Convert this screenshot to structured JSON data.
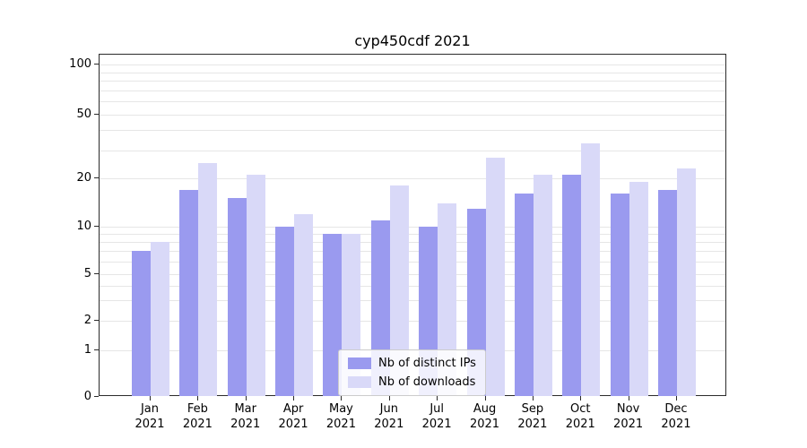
{
  "title": "cyp450cdf 2021",
  "chart_data": {
    "type": "bar",
    "title": "cyp450cdf 2021",
    "xlabel": "",
    "ylabel": "",
    "categories": [
      "Jan 2021",
      "Feb 2021",
      "Mar 2021",
      "Apr 2021",
      "May 2021",
      "Jun 2021",
      "Jul 2021",
      "Aug 2021",
      "Sep 2021",
      "Oct 2021",
      "Nov 2021",
      "Dec 2021"
    ],
    "series": [
      {
        "name": "Nb of distinct IPs",
        "color": "#9a9aef",
        "values": [
          7,
          17,
          15,
          10,
          9,
          11,
          10,
          13,
          16,
          21,
          16,
          17
        ]
      },
      {
        "name": "Nb of downloads",
        "color": "#d9d9f8",
        "values": [
          8,
          25,
          21,
          12,
          9,
          18,
          14,
          27,
          21,
          33,
          19,
          23
        ]
      }
    ],
    "yticks": [
      100,
      50,
      20,
      10,
      5,
      2,
      1,
      0
    ],
    "gridline_values": [
      1,
      2,
      3,
      4,
      5,
      6,
      7,
      8,
      9,
      10,
      20,
      30,
      40,
      50,
      60,
      70,
      80,
      90,
      100
    ],
    "ylim": [
      0,
      110
    ],
    "yscale": "log-like (compressed linear below 1)",
    "grid": "horizontal minor gridlines on",
    "legend_position": "lower center inside plot",
    "colors": {
      "grid": "#e6e6e6",
      "spine": "#2b2b2b",
      "background": "#ffffff"
    }
  }
}
